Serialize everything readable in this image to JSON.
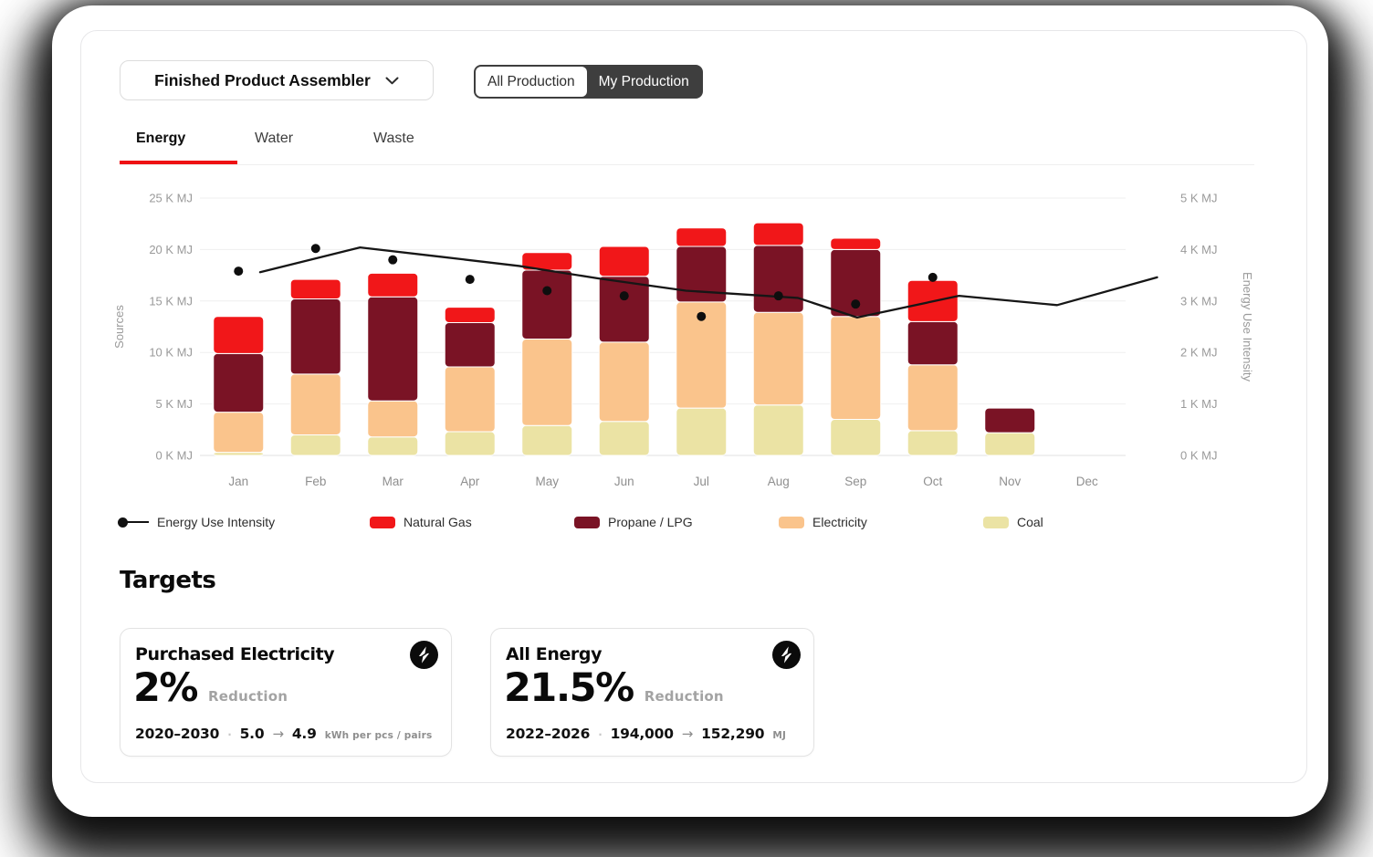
{
  "header": {
    "dropdown": {
      "label": "Finished Product Assembler",
      "icon": "chevron-down-icon"
    },
    "toggle": {
      "options": [
        "All Production",
        "My Production"
      ],
      "selected": "My Production"
    }
  },
  "tabs": [
    {
      "label": "Energy",
      "active": true
    },
    {
      "label": "Water",
      "active": false
    },
    {
      "label": "Waste",
      "active": false
    }
  ],
  "glyphs": {
    "separator_dot": "·",
    "arrow": "→"
  },
  "colors": {
    "accent_red": "#ee1113",
    "natural_gas": "#f11719",
    "propane_lpg": "#7a1325",
    "electricity": "#fac48c",
    "coal": "#ebe3a4",
    "intensity_line": "#161616",
    "toggle_dark": "#3e3e3e"
  },
  "chart_data": {
    "type": "bar",
    "subtype": "stacked-bar-with-line",
    "categories": [
      "Jan",
      "Feb",
      "Mar",
      "Apr",
      "May",
      "Jun",
      "Jul",
      "Aug",
      "Sep",
      "Oct",
      "Nov",
      "Dec"
    ],
    "left_axis": {
      "label": "Sources",
      "range": [
        0,
        25
      ],
      "ticks": [
        "0 K MJ",
        "5 K MJ",
        "10 K MJ",
        "15 K MJ",
        "20 K MJ",
        "25 K MJ"
      ]
    },
    "right_axis": {
      "label": "Energy Use Intensity",
      "range": [
        0,
        5
      ],
      "ticks": [
        "0 K MJ",
        "1 K MJ",
        "2 K MJ",
        "3 K MJ",
        "4 K MJ",
        "5 K MJ"
      ]
    },
    "grid": true,
    "series": [
      {
        "name": "Coal",
        "color": "#ebe3a4",
        "values": [
          0.3,
          2.0,
          1.8,
          2.3,
          2.9,
          3.3,
          4.6,
          4.9,
          3.5,
          2.4,
          2.2,
          0
        ]
      },
      {
        "name": "Electricity",
        "color": "#fac48c",
        "values": [
          3.9,
          5.9,
          3.5,
          6.3,
          8.4,
          7.7,
          10.3,
          9.0,
          10.0,
          6.4,
          0,
          0
        ]
      },
      {
        "name": "Propane / LPG",
        "color": "#7a1325",
        "values": [
          5.7,
          7.3,
          10.1,
          4.3,
          6.7,
          6.4,
          5.4,
          6.5,
          6.5,
          4.2,
          2.4,
          0
        ]
      },
      {
        "name": "Natural Gas",
        "color": "#f11719",
        "values": [
          3.6,
          1.9,
          2.3,
          1.5,
          1.7,
          2.9,
          1.8,
          2.2,
          1.1,
          4.0,
          0,
          0
        ]
      }
    ],
    "intensity_points": {
      "name": "Energy Use Intensity",
      "color": "#0e0e0e",
      "axis": "right",
      "values": [
        3.58,
        4.02,
        3.8,
        3.42,
        3.2,
        3.1,
        2.7,
        3.1,
        2.94,
        3.46,
        null,
        null
      ]
    },
    "intensity_line": {
      "axis": "right",
      "points": [
        [
          0.065,
          3.56
        ],
        [
          0.173,
          4.04
        ],
        [
          0.26,
          3.86
        ],
        [
          0.345,
          3.68
        ],
        [
          0.43,
          3.44
        ],
        [
          0.525,
          3.2
        ],
        [
          0.646,
          3.06
        ],
        [
          0.71,
          2.68
        ],
        [
          0.82,
          3.1
        ],
        [
          0.926,
          2.92
        ],
        [
          1.034,
          3.46
        ]
      ]
    },
    "legend": [
      {
        "swatch": "line-dot",
        "label": "Energy Use Intensity"
      },
      {
        "swatch": "#f11719",
        "label": "Natural Gas"
      },
      {
        "swatch": "#7a1325",
        "label": "Propane / LPG"
      },
      {
        "swatch": "#fac48c",
        "label": "Electricity"
      },
      {
        "swatch": "#ebe3a4",
        "label": "Coal"
      }
    ]
  },
  "targets": {
    "heading": "Targets",
    "cards": [
      {
        "title": "Purchased Electricity",
        "icon": "lightning-icon",
        "percent": "2%",
        "reduction_label": "Reduction",
        "period": "2020–2030",
        "from": "5.0",
        "to": "4.9",
        "unit": "kWh per pcs / pairs"
      },
      {
        "title": "All Energy",
        "icon": "lightning-icon",
        "percent": "21.5%",
        "reduction_label": "Reduction",
        "period": "2022–2026",
        "from": "194,000",
        "to": "152,290",
        "unit": "MJ"
      }
    ]
  }
}
